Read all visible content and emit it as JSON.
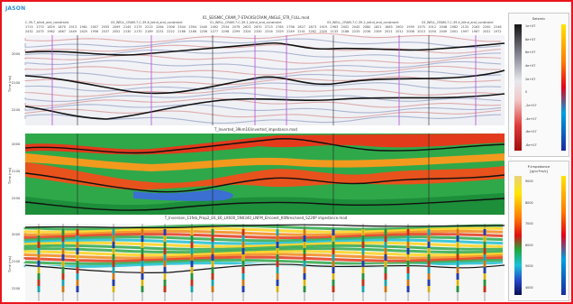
{
  "app": {
    "logo": "JASON"
  },
  "panel1": {
    "title": "01_SEISMIC_CRAM_7-STACKS(CRAM_ANGLE_STR_FULL.mod",
    "wells": [
      "C-39-7_blind_and_constraint",
      "03_WELL_CRAM-7-C-39-8_blind_and_constraint",
      "01_WELL_CRAM-7-C-39-1_blind_and_constraint",
      "03_WELL_CRAM-7-C-39-2_blind_and_constraint",
      "03_WELL_CRAM-7-C-39-4_blind_and_constraint"
    ],
    "traces_top": [
      "1715",
      "1770",
      "1829",
      "1870",
      "1913",
      "1961",
      "2007",
      "2055",
      "2099",
      "2145",
      "2175",
      "2215",
      "2264",
      "2306",
      "2344",
      "2394",
      "2440",
      "2492",
      "2534",
      "2578",
      "2623",
      "2670",
      "2713",
      "2765",
      "2798",
      "1827",
      "1873",
      "1919",
      "1963",
      "2002",
      "2045",
      "2080",
      "1821",
      "1863",
      "1902",
      "1939",
      "1975",
      "2012",
      "2048",
      "2082",
      "2125",
      "2163",
      "2200",
      "2246"
    ],
    "traces_bottom": [
      "2432",
      "2475",
      "1962",
      "1867",
      "2449",
      "2425",
      "1956",
      "2037",
      "2052",
      "2130",
      "2170",
      "2189",
      "2231",
      "2222",
      "2186",
      "2186",
      "2256",
      "2277",
      "2298",
      "2299",
      "2324",
      "2330",
      "2316",
      "2329",
      "2249",
      "2241",
      "2262",
      "2320",
      "2133",
      "2188",
      "2233",
      "2236",
      "2309",
      "2021",
      "2011",
      "2008",
      "2013",
      "2034",
      "2049",
      "2001",
      "1997",
      "1987",
      "2031",
      "1972"
    ],
    "y_label": "Time (ms)",
    "y_ticks": [
      "2000",
      "2100",
      "2200"
    ]
  },
  "panel2": {
    "title": "T_Inverted_39km16/inverted_impedance.mod",
    "y_label": "Time (ms)",
    "y_ticks": [
      "2000",
      "2100",
      "2200"
    ]
  },
  "panel3": {
    "title": "T_Inversion_11feb_Prop2_E6_E6_LX600_5N0340_LNFM_Elrcoest_KitNres/seed_S220P impedance.mod",
    "y_label": "Time (ms)",
    "y_ticks": [
      "2000",
      "2100",
      "2200"
    ]
  },
  "legend1": {
    "title": "Seismic",
    "ticks": [
      "1e+07",
      "8e+07",
      "6e+07",
      "4e+07",
      "2e+07",
      "0",
      "-2e+07",
      "-4e+07",
      "-6e+07",
      "-8e+07"
    ]
  },
  "legend2": {
    "title": "P-Impedance",
    "unit": "[g/cc*m/s]",
    "ticks": [
      "9000",
      "8000",
      "7000",
      "6000",
      "5000",
      "4000"
    ]
  },
  "colors": {
    "frame": "#e8151b",
    "logo": "#2a8fd6"
  }
}
